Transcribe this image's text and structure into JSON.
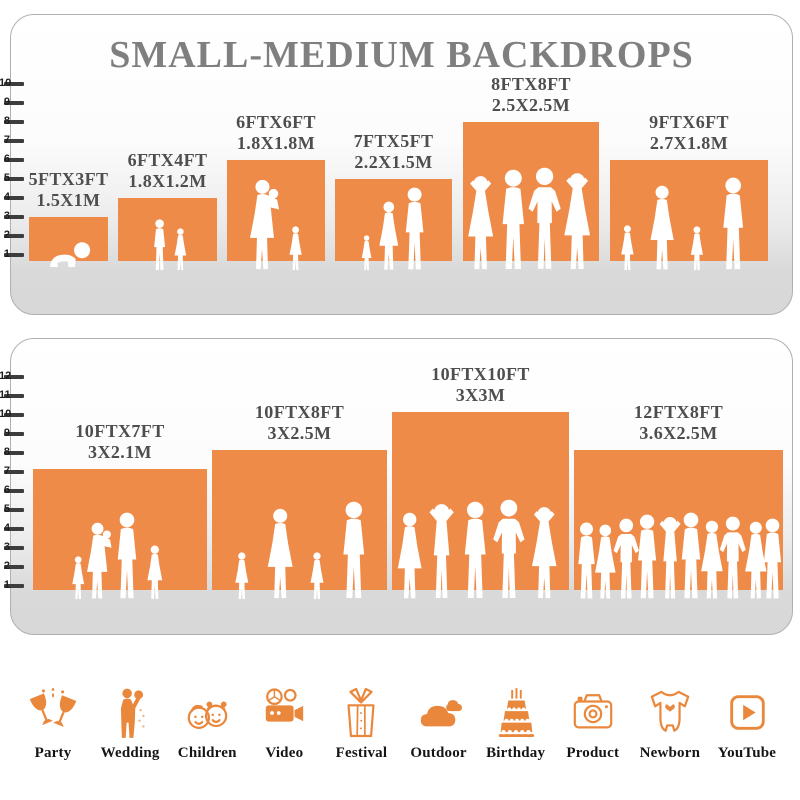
{
  "title": "SMALL-MEDIUM BACKDROPS",
  "colors": {
    "backdrop_orange": "#EF8B49",
    "title_gray": "#7f7f7f",
    "label_gray": "#4e4e4e",
    "tick_dark": "#3d3d3d",
    "icon_orange": "#E9883C"
  },
  "panels": [
    {
      "name": "top",
      "ruler": [
        "1",
        "2",
        "3",
        "4",
        "5",
        "6",
        "7",
        "8",
        "9",
        "10"
      ],
      "backdrops": [
        {
          "size_ft": "5FTX3FT",
          "size_m": "1.5X1M",
          "height_ft": 3,
          "people": "crawling-baby"
        },
        {
          "size_ft": "6FTX4FT",
          "size_m": "1.8X1.2M",
          "height_ft": 4,
          "people": "two-kids"
        },
        {
          "size_ft": "6FTX6FT",
          "size_m": "1.8X1.8M",
          "height_ft": 6,
          "people": "mother-and-child"
        },
        {
          "size_ft": "7FTX5FT",
          "size_m": "2.2X1.5M",
          "height_ft": 5,
          "people": "family-of-three"
        },
        {
          "size_ft": "8FTX8FT",
          "size_m": "2.5X2.5M",
          "height_ft": 8,
          "people": "group-of-four"
        },
        {
          "size_ft": "9FTX6FT",
          "size_m": "2.7X1.8M",
          "height_ft": 6,
          "people": "family-of-four"
        }
      ]
    },
    {
      "name": "bottom",
      "ruler": [
        "1",
        "2",
        "3",
        "4",
        "5",
        "6",
        "7",
        "8",
        "9",
        "10",
        "11",
        "12"
      ],
      "backdrops": [
        {
          "size_ft": "10FTX7FT",
          "size_m": "3X2.1M",
          "height_ft": 7,
          "people": "family-with-toddler"
        },
        {
          "size_ft": "10FTX8FT",
          "size_m": "3X2.5M",
          "height_ft": 8,
          "people": "family-holding-hands"
        },
        {
          "size_ft": "10FTX10FT",
          "size_m": "3X3M",
          "height_ft": 10,
          "people": "group-of-five"
        },
        {
          "size_ft": "12FTX8FT",
          "size_m": "3.6X2.5M",
          "height_ft": 8,
          "people": "crowd"
        }
      ]
    }
  ],
  "categories": [
    {
      "label": "Party",
      "icon": "party-icon"
    },
    {
      "label": "Wedding",
      "icon": "wedding-icon"
    },
    {
      "label": "Children",
      "icon": "children-icon"
    },
    {
      "label": "Video",
      "icon": "video-icon"
    },
    {
      "label": "Festival",
      "icon": "festival-icon"
    },
    {
      "label": "Outdoor",
      "icon": "outdoor-icon"
    },
    {
      "label": "Birthday",
      "icon": "birthday-icon"
    },
    {
      "label": "Product",
      "icon": "product-icon"
    },
    {
      "label": "Newborn",
      "icon": "newborn-icon"
    },
    {
      "label": "YouTube",
      "icon": "youtube-icon"
    }
  ]
}
